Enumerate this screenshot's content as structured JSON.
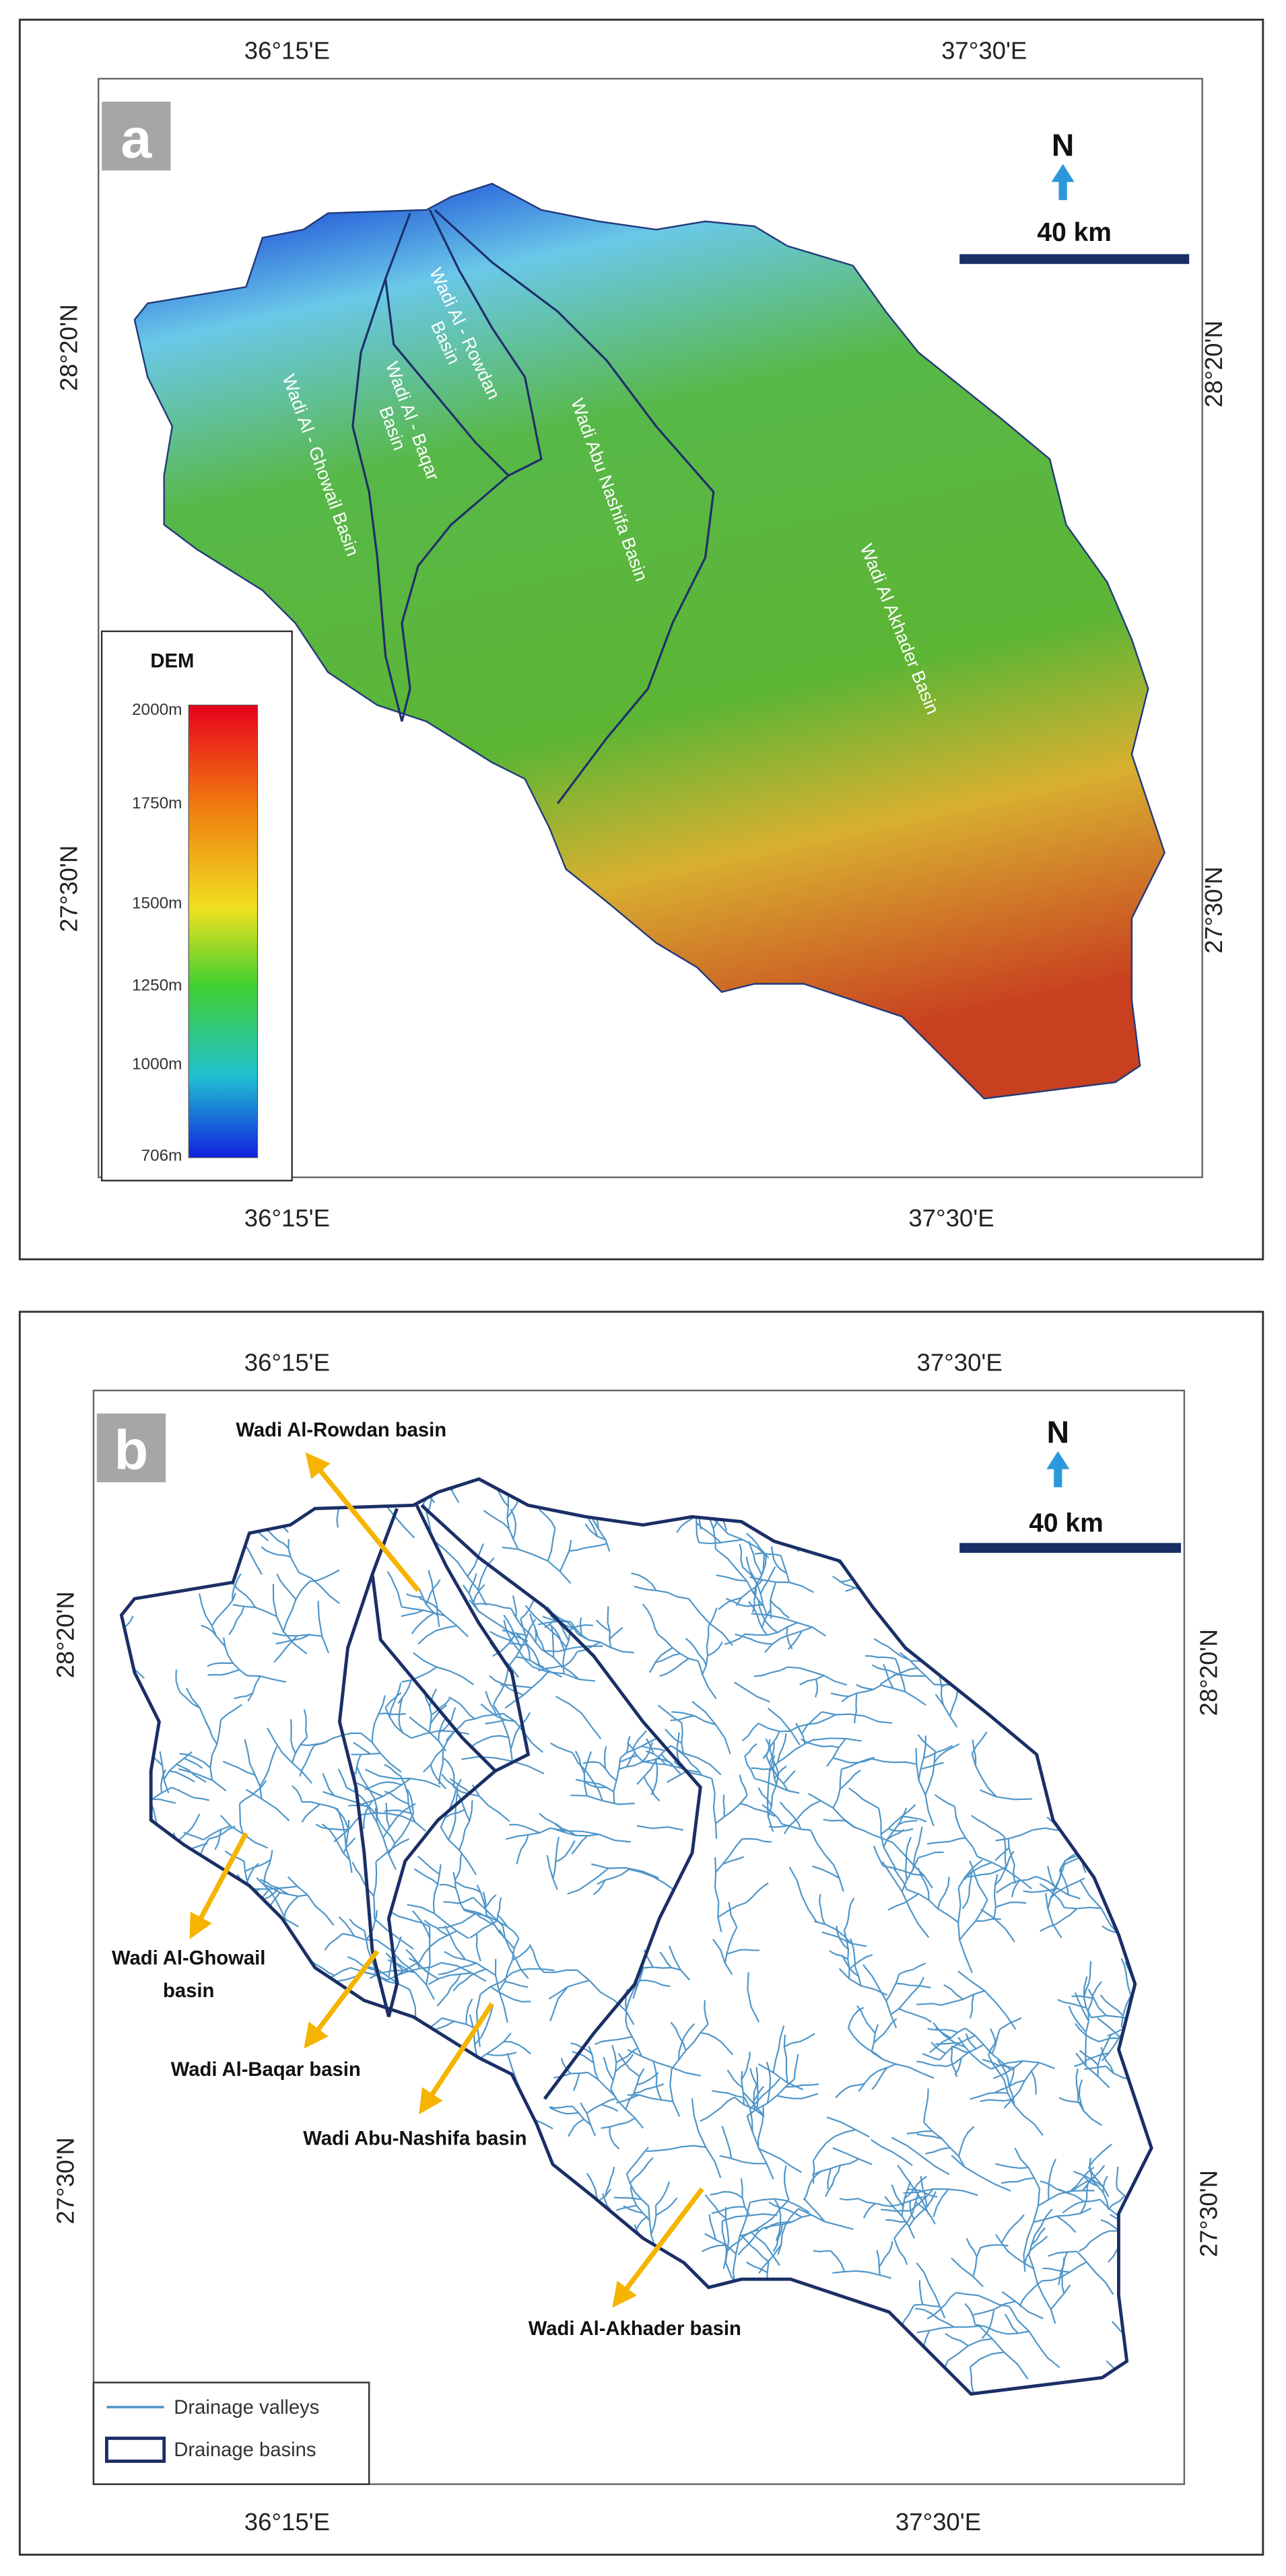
{
  "panels": [
    {
      "label": "a",
      "top_labels": [
        "36°15'E",
        "37°30'E"
      ],
      "bottom_labels": [
        "36°15'E",
        "37°30'E"
      ],
      "left_labels": [
        "28°20'N",
        "27°30'N"
      ],
      "right_labels": [
        "28°20'N",
        "27°30'N"
      ],
      "north": "N",
      "scale": "40 km",
      "basins": [
        {
          "lines": [
            "Wadi Al - Ghowail Basin"
          ]
        },
        {
          "lines": [
            "Wadi Al - Rowdan",
            "Basin"
          ]
        },
        {
          "lines": [
            "Wadi Al - Baqar",
            "Basin"
          ]
        },
        {
          "lines": [
            "Wadi Abu Nashifa Basin"
          ]
        },
        {
          "lines": [
            "Wadi Al Akhader Basin"
          ]
        }
      ],
      "legend": {
        "title": "DEM",
        "ticks": [
          "2000m",
          "1750m",
          "1500m",
          "1250m",
          "1000m",
          "706m"
        ]
      }
    },
    {
      "label": "b",
      "top_labels": [
        "36°15'E",
        "37°30'E"
      ],
      "bottom_labels": [
        "36°15'E",
        "37°30'E"
      ],
      "left_labels": [
        "28°20'N",
        "27°30'N"
      ],
      "right_labels": [
        "28°20'N",
        "27°30'N"
      ],
      "north": "N",
      "scale": "40 km",
      "annotations": [
        {
          "lines": [
            "Wadi Al-Rowdan basin"
          ]
        },
        {
          "lines": [
            "Wadi Al-Ghowail",
            "basin"
          ]
        },
        {
          "lines": [
            "Wadi Al-Baqar basin"
          ]
        },
        {
          "lines": [
            "Wadi Abu-Nashifa basin"
          ]
        },
        {
          "lines": [
            "Wadi Al-Akhader basin"
          ]
        }
      ],
      "legend": {
        "items": [
          "Drainage valleys",
          "Drainage basins"
        ]
      }
    }
  ]
}
